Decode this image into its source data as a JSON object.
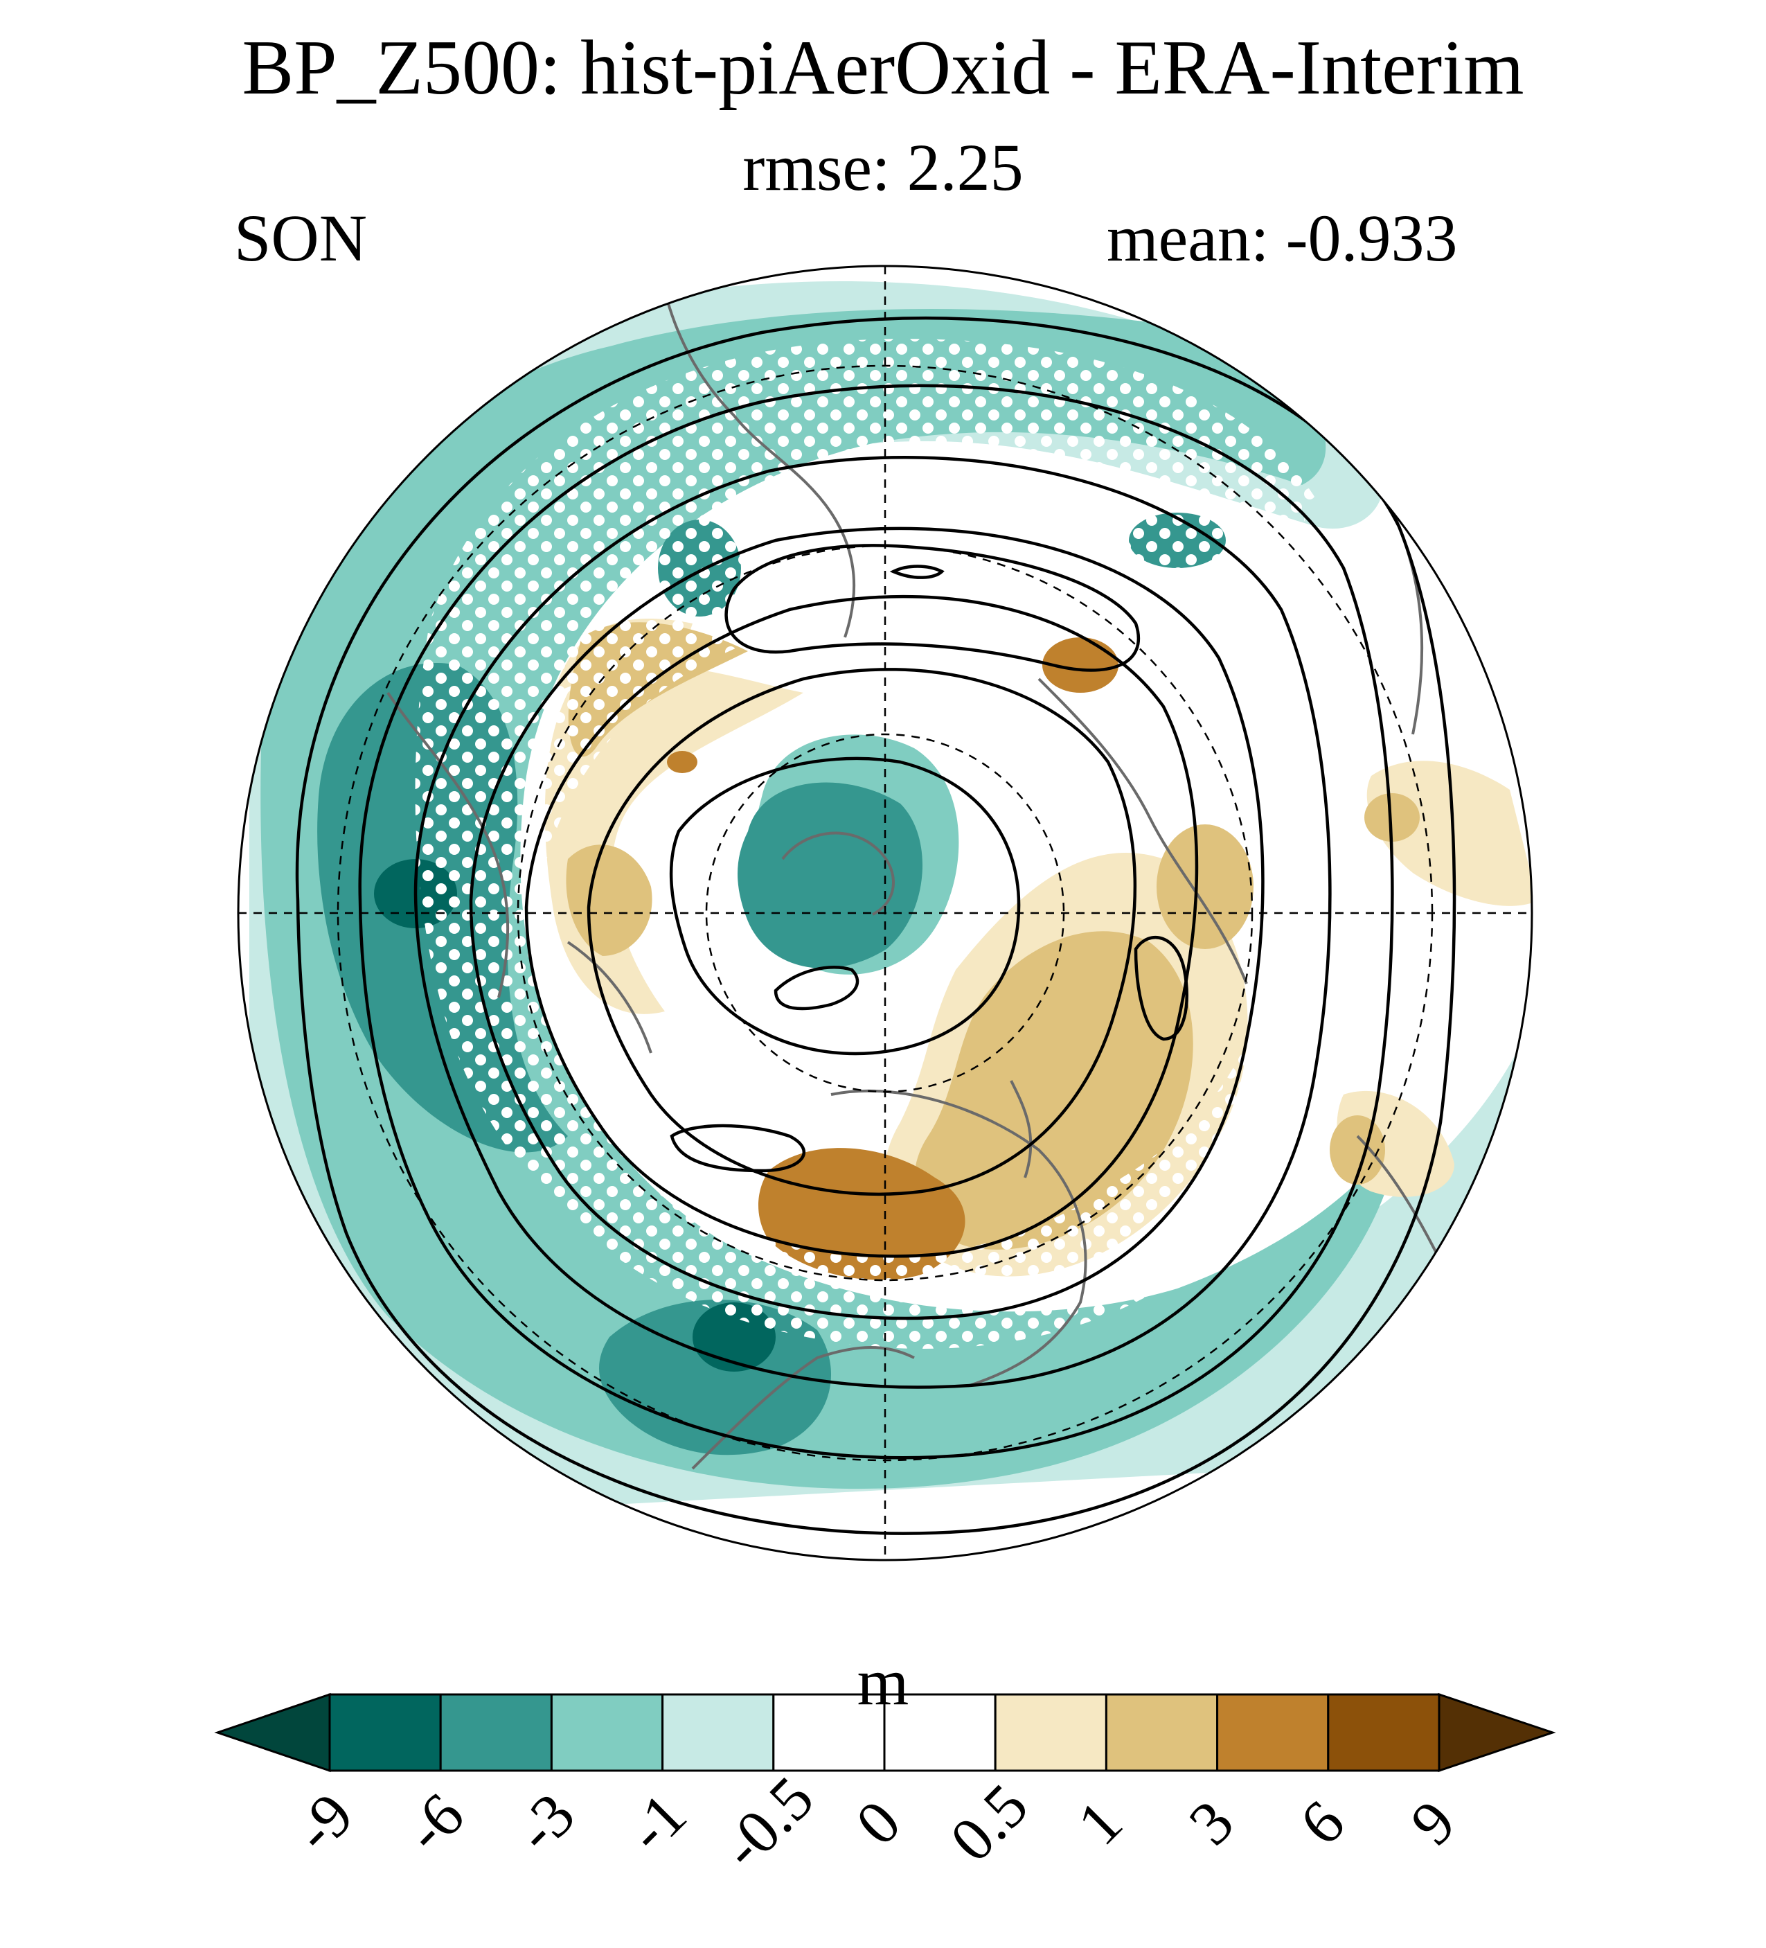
{
  "title": "BP_Z500: hist-piAerOxid - ERA-Interim",
  "subtitle": "rmse: 2.25",
  "season": "SON",
  "mean_label": "mean: -0.933",
  "colorbar": {
    "units": "m",
    "levels": [
      "-9",
      "-6",
      "-3",
      "-1",
      "-0.5",
      "0",
      "0.5",
      "1",
      "3",
      "6",
      "9"
    ],
    "colors": [
      "#01463c",
      "#01665e",
      "#35978f",
      "#80cdc1",
      "#c7eae5",
      "#ffffff",
      "#ffffff",
      "#f6e8c3",
      "#dfc27d",
      "#bf812d",
      "#8c510a",
      "#543005"
    ]
  },
  "map": {
    "projection": "north-polar-stereographic",
    "significance_stippling": "white dots"
  }
}
